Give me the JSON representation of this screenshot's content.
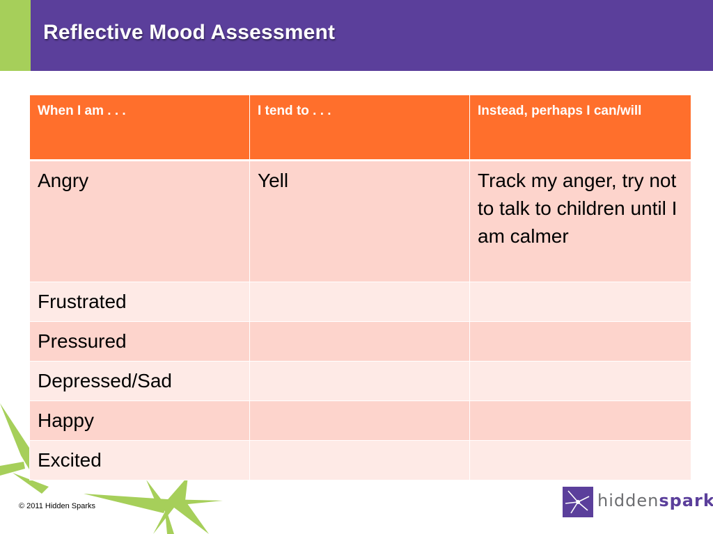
{
  "slide": {
    "title": "Reflective Mood Assessment"
  },
  "colors": {
    "header": "#5b3f9b",
    "accent": "#a6cf5a",
    "table_header": "#ff6f2c",
    "row_odd": "#fdd4cc",
    "row_even": "#feeae6"
  },
  "table": {
    "headers": [
      "When I am  . . .",
      "I tend to . . .",
      "Instead, perhaps I can/will"
    ],
    "rows": [
      [
        "Angry",
        "Yell",
        "Track my anger, try not to talk to children until I am calmer"
      ],
      [
        "Frustrated",
        "",
        ""
      ],
      [
        "Pressured",
        "",
        ""
      ],
      [
        "Depressed/Sad",
        "",
        ""
      ],
      [
        "Happy",
        "",
        ""
      ],
      [
        "Excited",
        "",
        ""
      ]
    ]
  },
  "footer": {
    "copyright": "© 2011 Hidden Sparks"
  },
  "logo": {
    "icon": "sparks-logo-icon",
    "text_part1": "hidden",
    "text_part2": "sparks"
  },
  "decoration": {
    "icon": "star-sparks-decoration"
  }
}
